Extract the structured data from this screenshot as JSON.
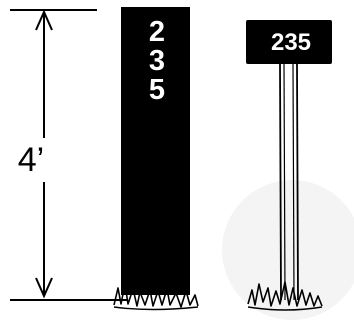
{
  "dimension": {
    "label": "4’"
  },
  "post_sign": {
    "digits": [
      "2",
      "3",
      "5"
    ]
  },
  "panel_sign": {
    "number": "235"
  },
  "colors": {
    "sign": "#000000",
    "text_on_sign": "#ffffff",
    "background": "#ffffff",
    "grass": "#000000"
  }
}
